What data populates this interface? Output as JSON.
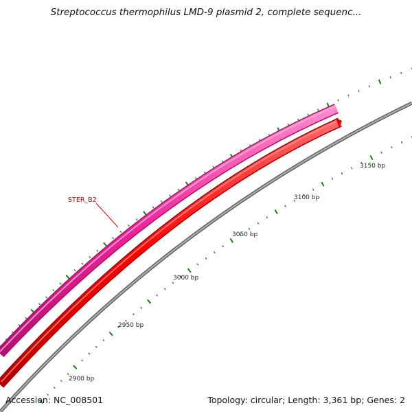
{
  "title": "Streptococcus thermophilus LMD-9 plasmid 2, complete sequenc...",
  "accession_text": "Accession: NC_008501",
  "summary_text": "Topology: circular; Length: 3,361 bp; Genes: 2",
  "features": {
    "gene_label": "STER_B2",
    "colors": {
      "forward_gene": "#ee2299",
      "reverse_gene": "#ff0000",
      "backbone": "#888888",
      "ticks": "#1a7a1a",
      "label": "#cc0000"
    }
  },
  "ruler": {
    "labels": [
      "2900 bp",
      "2950 bp",
      "3000 bp",
      "3050 bp",
      "3100 bp",
      "3150 bp"
    ]
  }
}
